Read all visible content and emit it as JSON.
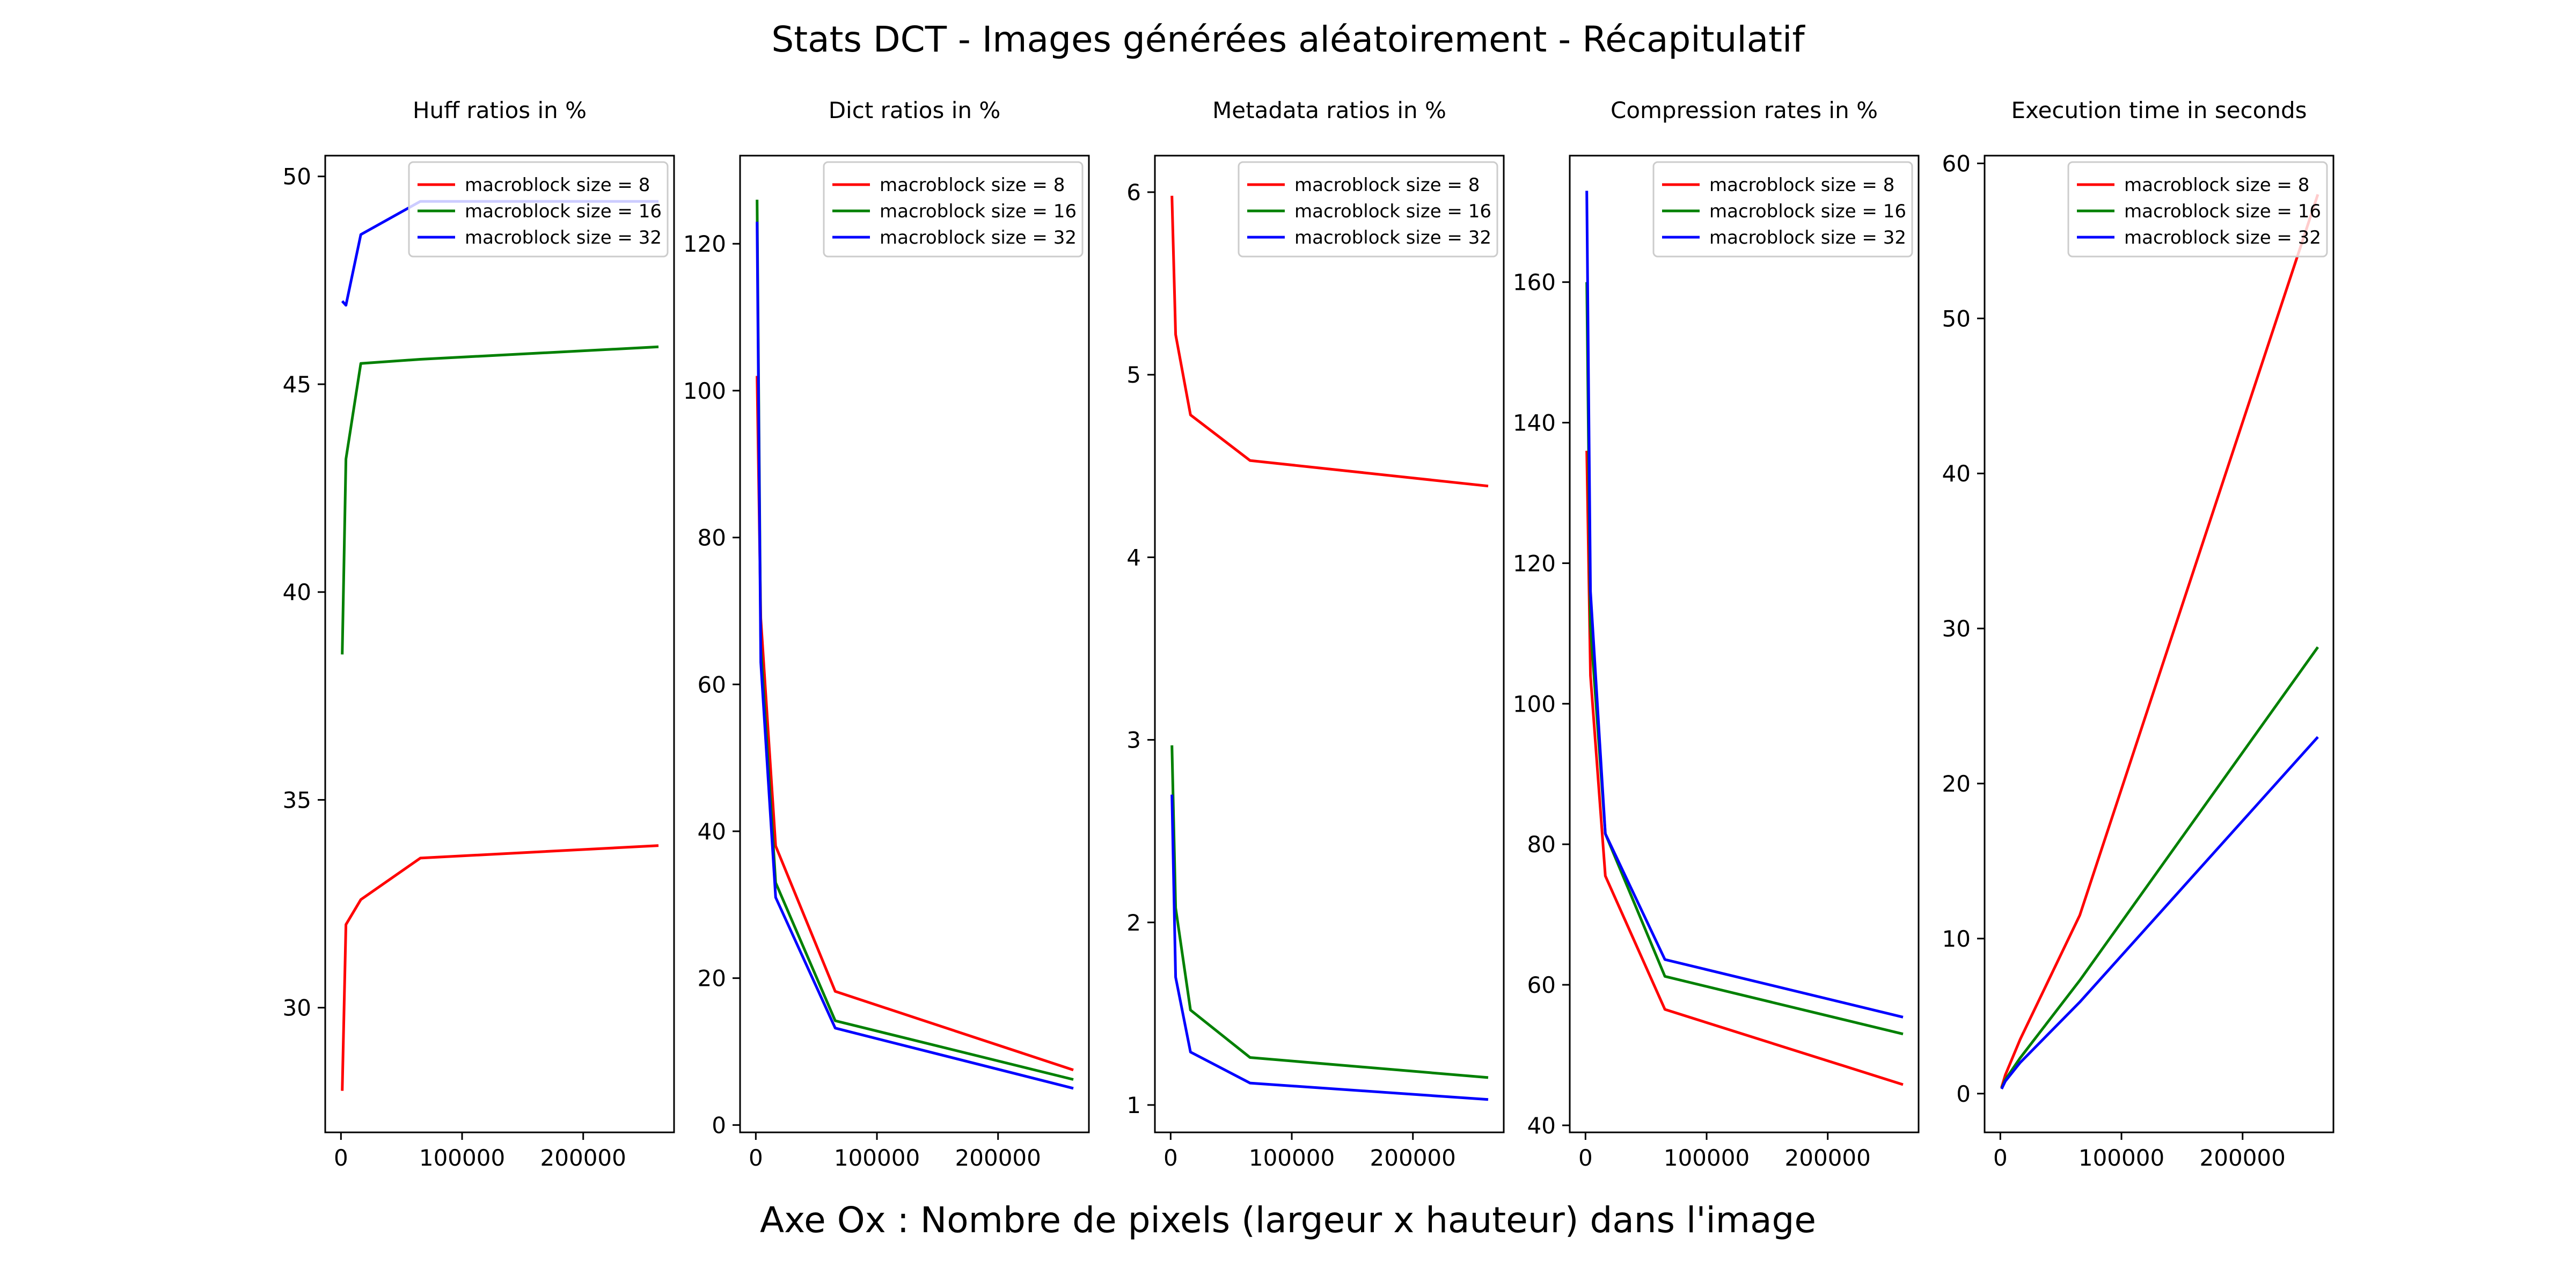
{
  "figure": {
    "suptitle": "Stats DCT - Images générées aléatoirement - Récapitulatif",
    "supxlabel": "Axe Ox : Nombre de pixels (largeur x hauteur) dans l'image"
  },
  "chart_data": [
    {
      "type": "line",
      "title": "Huff ratios in %",
      "xlabel": "",
      "ylabel": "",
      "xlim": [
        -13000,
        275000
      ],
      "ylim": [
        27,
        50.5
      ],
      "xticks": [
        0,
        100000,
        200000
      ],
      "yticks": [
        30,
        35,
        40,
        45,
        50
      ],
      "legend": "top-right",
      "grid": false,
      "series": [
        {
          "name": "macroblock size = 8",
          "color": "#ff0000",
          "x": [
            1024,
            4096,
            16384,
            65536,
            262144
          ],
          "y": [
            28.0,
            32.0,
            32.6,
            33.6,
            33.9
          ]
        },
        {
          "name": "macroblock size = 16",
          "color": "#008000",
          "x": [
            1024,
            4096,
            16384,
            65536,
            262144
          ],
          "y": [
            38.5,
            43.2,
            45.5,
            45.6,
            45.9
          ]
        },
        {
          "name": "macroblock size = 32",
          "color": "#0000ff",
          "x": [
            1024,
            4096,
            16384,
            65536,
            262144
          ],
          "y": [
            47.0,
            46.9,
            48.6,
            49.4,
            49.4
          ]
        }
      ]
    },
    {
      "type": "line",
      "title": "Dict ratios in %",
      "xlabel": "",
      "ylabel": "",
      "xlim": [
        -13000,
        275000
      ],
      "ylim": [
        -1,
        132
      ],
      "xticks": [
        0,
        100000,
        200000
      ],
      "yticks": [
        0,
        20,
        40,
        60,
        80,
        100,
        120
      ],
      "legend": "top-right",
      "grid": false,
      "series": [
        {
          "name": "macroblock size = 8",
          "color": "#ff0000",
          "x": [
            1024,
            4096,
            16384,
            65536,
            262144
          ],
          "y": [
            102,
            69,
            38,
            18.2,
            7.5
          ]
        },
        {
          "name": "macroblock size = 16",
          "color": "#008000",
          "x": [
            1024,
            4096,
            16384,
            65536,
            262144
          ],
          "y": [
            126,
            65,
            33,
            14.2,
            6.2
          ]
        },
        {
          "name": "macroblock size = 32",
          "color": "#0000ff",
          "x": [
            1024,
            4096,
            16384,
            65536,
            262144
          ],
          "y": [
            123,
            63,
            31,
            13.2,
            5.0
          ]
        }
      ]
    },
    {
      "type": "line",
      "title": "Metadata ratios in %",
      "xlabel": "",
      "ylabel": "",
      "xlim": [
        -13000,
        275000
      ],
      "ylim": [
        0.85,
        6.2
      ],
      "xticks": [
        0,
        100000,
        200000
      ],
      "yticks": [
        1,
        2,
        3,
        4,
        5,
        6
      ],
      "legend": "top-right",
      "grid": false,
      "series": [
        {
          "name": "macroblock size = 8",
          "color": "#ff0000",
          "x": [
            1024,
            4096,
            16384,
            65536,
            262144
          ],
          "y": [
            5.98,
            5.22,
            4.78,
            4.53,
            4.39
          ]
        },
        {
          "name": "macroblock size = 16",
          "color": "#008000",
          "x": [
            1024,
            4096,
            16384,
            65536,
            262144
          ],
          "y": [
            2.97,
            2.08,
            1.52,
            1.26,
            1.15
          ]
        },
        {
          "name": "macroblock size = 32",
          "color": "#0000ff",
          "x": [
            1024,
            4096,
            16384,
            65536,
            262144
          ],
          "y": [
            2.7,
            1.7,
            1.29,
            1.12,
            1.03
          ]
        }
      ]
    },
    {
      "type": "line",
      "title": "Compression rates in %",
      "xlabel": "",
      "ylabel": "",
      "xlim": [
        -13000,
        275000
      ],
      "ylim": [
        39,
        178
      ],
      "xticks": [
        0,
        100000,
        200000
      ],
      "yticks": [
        40,
        60,
        80,
        100,
        120,
        140,
        160
      ],
      "legend": "top-right",
      "grid": false,
      "series": [
        {
          "name": "macroblock size = 8",
          "color": "#ff0000",
          "x": [
            1024,
            4096,
            16384,
            65536,
            262144
          ],
          "y": [
            136,
            104,
            75.5,
            56.5,
            45.8
          ]
        },
        {
          "name": "macroblock size = 16",
          "color": "#008000",
          "x": [
            1024,
            4096,
            16384,
            65536,
            262144
          ],
          "y": [
            160,
            111,
            81.5,
            61.2,
            53.0
          ]
        },
        {
          "name": "macroblock size = 32",
          "color": "#0000ff",
          "x": [
            1024,
            4096,
            16384,
            65536,
            262144
          ],
          "y": [
            173,
            116,
            81.5,
            63.6,
            55.4
          ]
        }
      ]
    },
    {
      "type": "line",
      "title": "Execution time in seconds",
      "xlabel": "",
      "ylabel": "",
      "xlim": [
        -13000,
        275000
      ],
      "ylim": [
        -2.5,
        60.5
      ],
      "xticks": [
        0,
        100000,
        200000
      ],
      "yticks": [
        0,
        10,
        20,
        30,
        40,
        50,
        60
      ],
      "legend": "top-right",
      "grid": false,
      "series": [
        {
          "name": "macroblock size = 8",
          "color": "#ff0000",
          "x": [
            1024,
            4096,
            16384,
            65536,
            262144
          ],
          "y": [
            0.4,
            1.2,
            3.5,
            11.5,
            58.0
          ]
        },
        {
          "name": "macroblock size = 16",
          "color": "#008000",
          "x": [
            1024,
            4096,
            16384,
            65536,
            262144
          ],
          "y": [
            0.35,
            0.9,
            2.3,
            7.3,
            28.8
          ]
        },
        {
          "name": "macroblock size = 32",
          "color": "#0000ff",
          "x": [
            1024,
            4096,
            16384,
            65536,
            262144
          ],
          "y": [
            0.3,
            0.8,
            2.0,
            5.9,
            23.0
          ]
        }
      ]
    }
  ]
}
